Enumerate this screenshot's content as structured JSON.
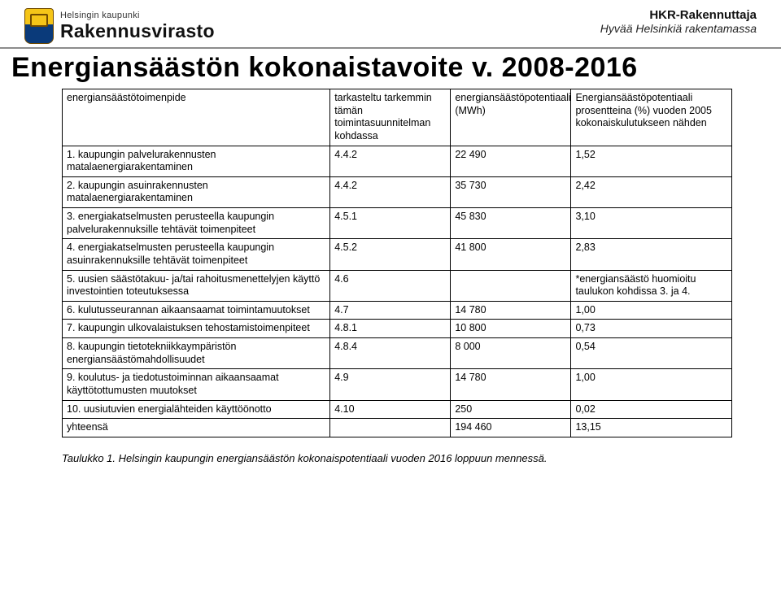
{
  "header": {
    "left_small": "Helsingin kaupunki",
    "left_big": "Rakennusvirasto",
    "right_line1": "HKR-Rakennuttaja",
    "right_line2": "Hyvää Helsinkiä rakentamassa"
  },
  "title": "Energiansäästön kokonaistavoite v. 2008-2016",
  "table": {
    "columns": [
      "energiansäästötoimenpide",
      "tarkasteltu tarkemmin tämän toimintasuunnitelman kohdassa",
      "energiansäästöpotentiaali (MWh)",
      "Energiansäästöpotentiaali prosentteina (%) vuoden 2005 kokonaiskulutukseen nähden"
    ],
    "rows": [
      {
        "c0": "1. kaupungin palvelurakennusten matalaenergiarakentaminen",
        "c1": "4.4.2",
        "c2": "22 490",
        "c3": "1,52"
      },
      {
        "c0": "2. kaupungin asuinrakennusten matalaenergiarakentaminen",
        "c1": "4.4.2",
        "c2": "35 730",
        "c3": "2,42"
      },
      {
        "c0": "3. energiakatselmusten perusteella kaupungin palvelurakennuksille tehtävät toimenpiteet",
        "c1": "4.5.1",
        "c2": "45 830",
        "c3": "3,10"
      },
      {
        "c0": "4. energiakatselmusten perusteella kaupungin asuinrakennuksille tehtävät toimenpiteet",
        "c1": "4.5.2",
        "c2": "41 800",
        "c3": "2,83"
      },
      {
        "c0": "5. uusien säästötakuu- ja/tai rahoitusmenettelyjen käyttö investointien toteutuksessa",
        "c1": "4.6",
        "c2": "",
        "c3": "*energiansäästö huomioitu taulukon kohdissa 3. ja 4."
      },
      {
        "c0": "6. kulutusseurannan aikaansaamat toimintamuutokset",
        "c1": "4.7",
        "c2": "14 780",
        "c3": "1,00"
      },
      {
        "c0": "7. kaupungin ulkovalaistuksen tehostamistoimenpiteet",
        "c1": "4.8.1",
        "c2": "10 800",
        "c3": "0,73"
      },
      {
        "c0": "8. kaupungin tietotekniikkaympäristön energiansäästömahdollisuudet",
        "c1": "4.8.4",
        "c2": "8 000",
        "c3": "0,54"
      },
      {
        "c0": "9. koulutus- ja tiedotustoiminnan aikaansaamat käyttötottumusten muutokset",
        "c1": "4.9",
        "c2": "14 780",
        "c3": "1,00"
      },
      {
        "c0": "10. uusiutuvien energialähteiden käyttöönotto",
        "c1": "4.10",
        "c2": "250",
        "c3": "0,02"
      },
      {
        "c0": "yhteensä",
        "c1": "",
        "c2": "194 460",
        "c3": "13,15"
      }
    ]
  },
  "caption": "Taulukko 1. Helsingin kaupungin energiansäästön kokonaispotentiaali vuoden 2016 loppuun mennessä."
}
